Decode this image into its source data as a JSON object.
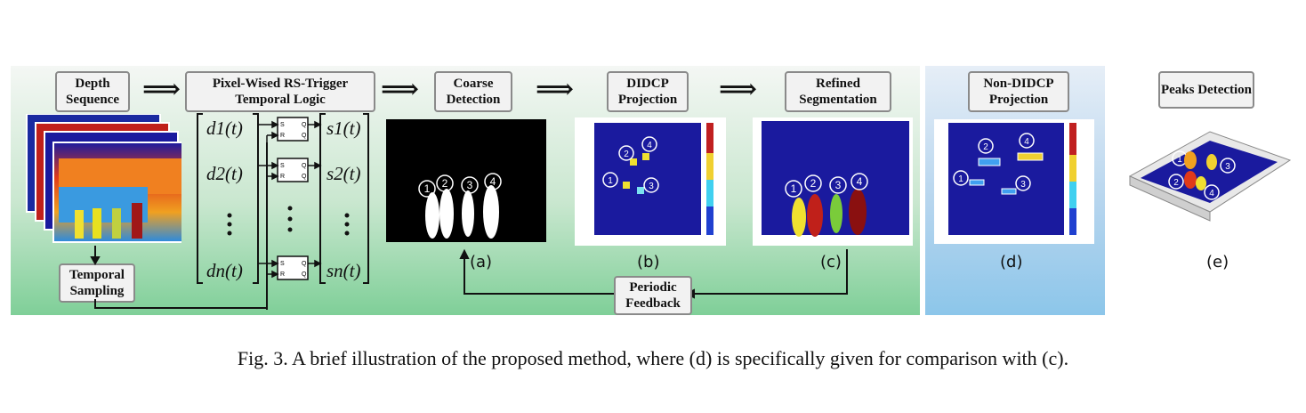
{
  "labels": {
    "depth_sequence": "Depth Sequence",
    "pixel_wised": "Pixel-Wised RS-Trigger Temporal Logic",
    "coarse_detection": "Coarse Detection",
    "didcp_projection": "DIDCP Projection",
    "refined_segmentation": "Refined Segmentation",
    "non_didcp_projection": "Non-DIDCP Projection",
    "peaks_detection": "Peaks Detection",
    "temporal_sampling": "Temporal Sampling",
    "periodic_feedback": "Periodic Feedback"
  },
  "matrix": {
    "d": [
      "d1(t)",
      "d2(t)",
      "dn(t)"
    ],
    "s": [
      "s1(t)",
      "s2(t)",
      "sn(t)"
    ]
  },
  "circle_ids": [
    "①",
    "②",
    "③",
    "④"
  ],
  "sub_labels": [
    "(a)",
    "(b)",
    "(c)",
    "(d)",
    "(e)"
  ],
  "caption": "Fig. 3.   A brief illustration of the proposed method, where (d) is specifically given for comparison with (c).",
  "colors": {
    "deep_blue": "#1a1a9e",
    "yellow": "#f0e030",
    "red": "#c0201a",
    "dark_red": "#8a1010",
    "green": "#7acc3a"
  }
}
